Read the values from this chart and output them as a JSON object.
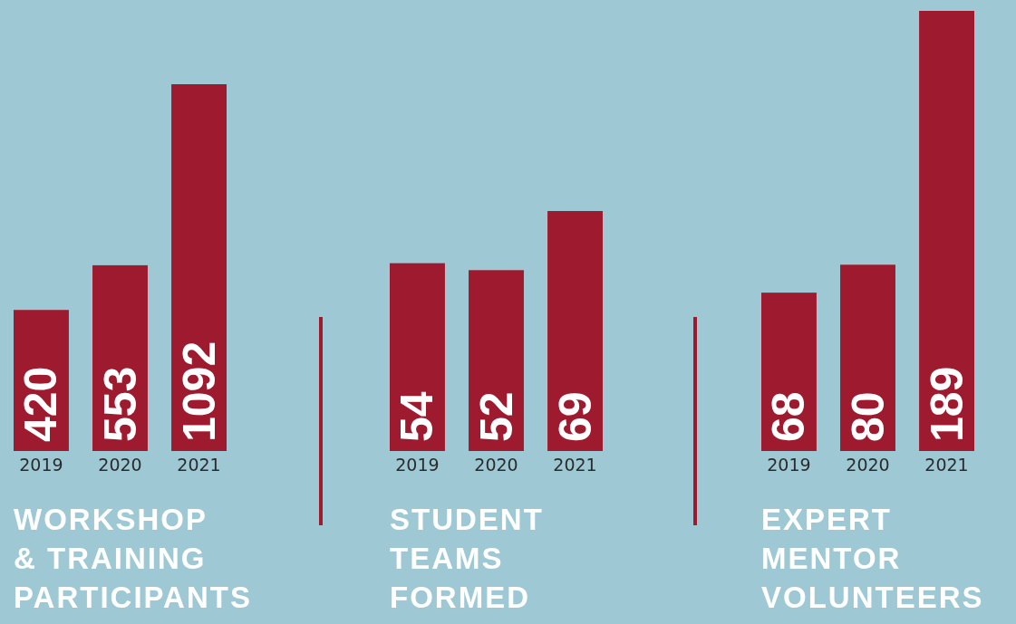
{
  "chart_data": [
    {
      "type": "bar",
      "title": "WORKSHOP\n& TRAINING\nPARTICIPANTS",
      "categories": [
        "2019",
        "2020",
        "2021"
      ],
      "values": [
        420,
        553,
        1092
      ],
      "color": "#9e1a2e",
      "data_labels": true
    },
    {
      "type": "bar",
      "title": "STUDENT\nTEAMS\nFORMED",
      "categories": [
        "2019",
        "2020",
        "2021"
      ],
      "values": [
        54,
        52,
        69
      ],
      "color": "#9e1a2e",
      "data_labels": true
    },
    {
      "type": "bar",
      "title": "EXPERT\nMENTOR\nVOLUNTEERS",
      "categories": [
        "2019",
        "2020",
        "2021"
      ],
      "values": [
        68,
        80,
        189
      ],
      "color": "#9e1a2e",
      "data_labels": true
    }
  ]
}
